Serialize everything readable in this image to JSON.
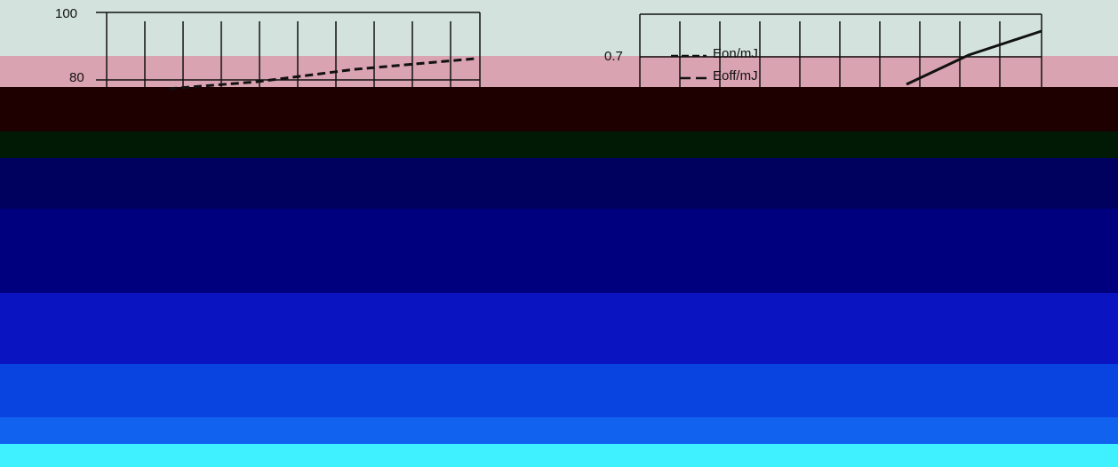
{
  "left_axis": {
    "ticks": [
      "100",
      "80"
    ]
  },
  "right_axis": {
    "ticks": [
      "0.7"
    ]
  },
  "legend": [
    "Eon/mJ",
    "Eoff/mJ"
  ]
}
